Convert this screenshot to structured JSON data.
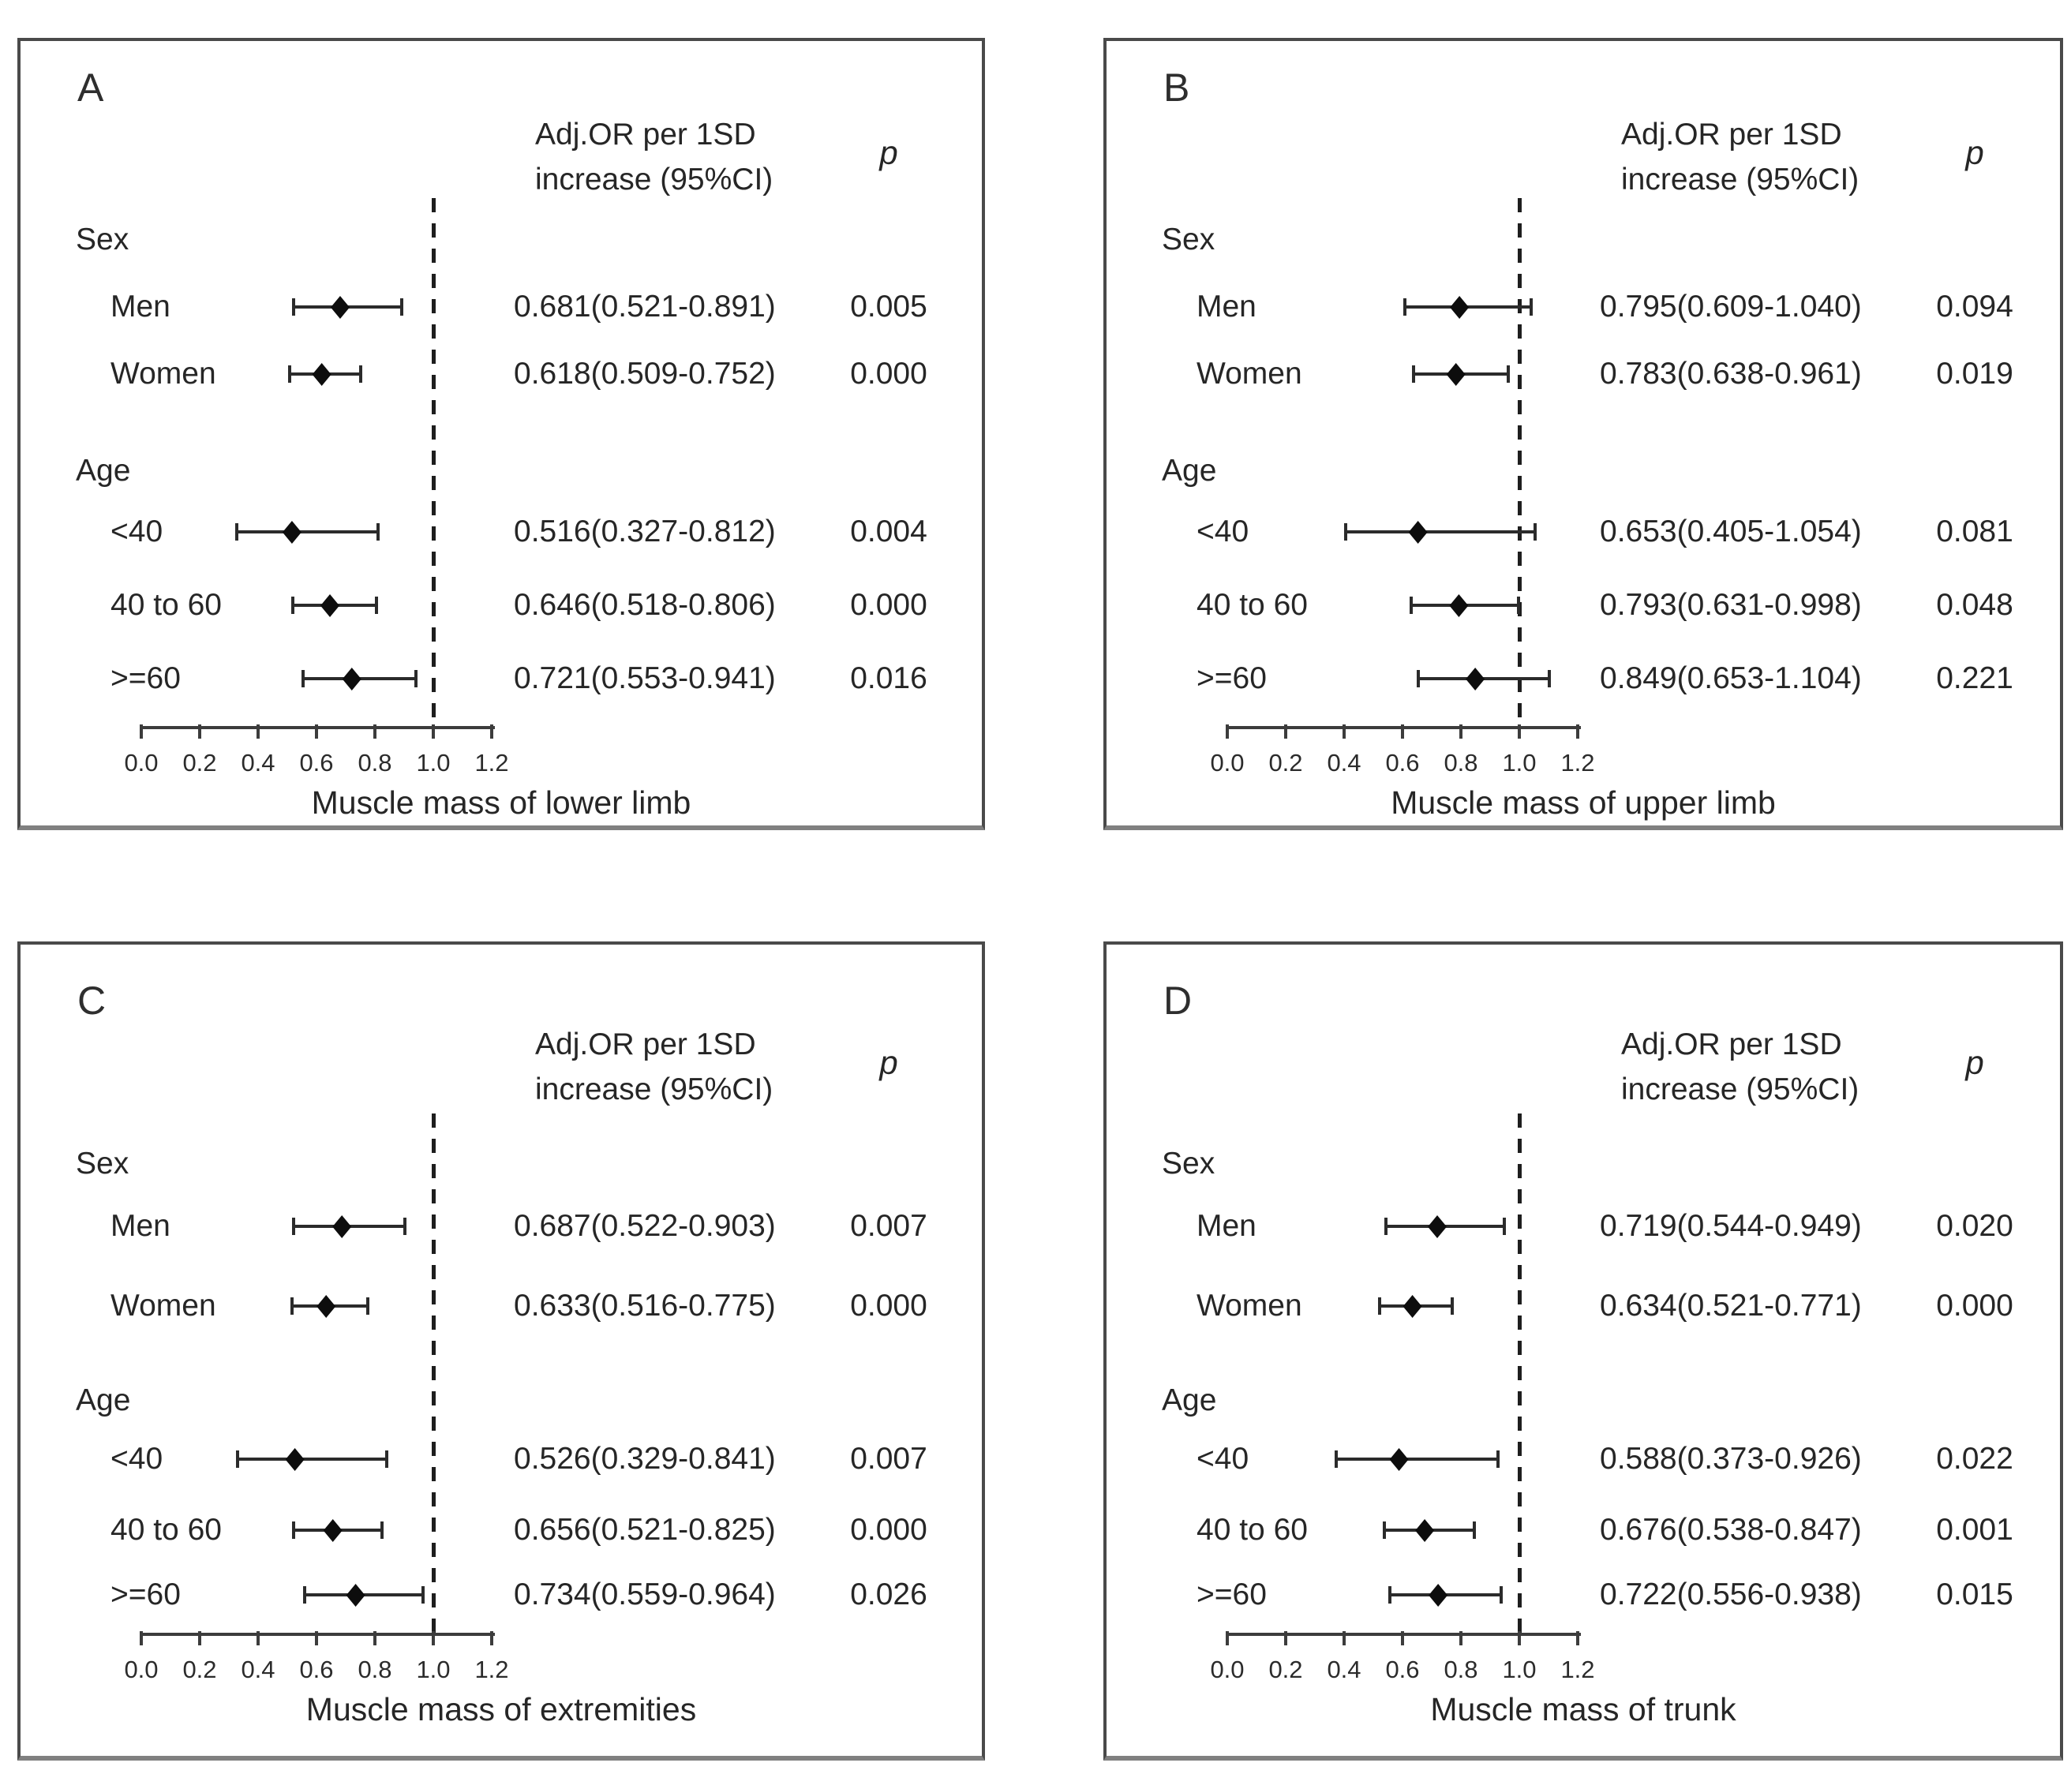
{
  "chart_data": [
    {
      "type": "scatter",
      "subtype": "forest-plot",
      "panel_letter": "A",
      "col_header": [
        "Adj.OR per 1SD",
        "increase (95%CI)"
      ],
      "p_header": "p",
      "xlabel": "Muscle mass of lower limb",
      "xlim": [
        0.0,
        1.2
      ],
      "x_ticks": [
        "0.0",
        "0.2",
        "0.4",
        "0.6",
        "0.8",
        "1.0",
        "1.2"
      ],
      "reference_line_x": 1.0,
      "marker": "diamond",
      "error_bars": true,
      "groups": [
        {
          "name": "Sex",
          "rows": [
            {
              "label": "Men",
              "or": 0.681,
              "ci_low": 0.521,
              "ci_high": 0.891,
              "or_text": "0.681(0.521-0.891)",
              "p_text": "0.005"
            },
            {
              "label": "Women",
              "or": 0.618,
              "ci_low": 0.509,
              "ci_high": 0.752,
              "or_text": "0.618(0.509-0.752)",
              "p_text": "0.000"
            }
          ]
        },
        {
          "name": "Age",
          "rows": [
            {
              "label": "<40",
              "or": 0.516,
              "ci_low": 0.327,
              "ci_high": 0.812,
              "or_text": "0.516(0.327-0.812)",
              "p_text": "0.004"
            },
            {
              "label": "40 to 60",
              "or": 0.646,
              "ci_low": 0.518,
              "ci_high": 0.806,
              "or_text": "0.646(0.518-0.806)",
              "p_text": "0.000"
            },
            {
              "label": ">=60",
              "or": 0.721,
              "ci_low": 0.553,
              "ci_high": 0.941,
              "or_text": "0.721(0.553-0.941)",
              "p_text": "0.016"
            }
          ]
        }
      ]
    },
    {
      "type": "scatter",
      "subtype": "forest-plot",
      "panel_letter": "B",
      "col_header": [
        "Adj.OR per 1SD",
        "increase (95%CI)"
      ],
      "p_header": "p",
      "xlabel": "Muscle mass of upper limb",
      "xlim": [
        0.0,
        1.2
      ],
      "x_ticks": [
        "0.0",
        "0.2",
        "0.4",
        "0.6",
        "0.8",
        "1.0",
        "1.2"
      ],
      "reference_line_x": 1.0,
      "marker": "diamond",
      "error_bars": true,
      "groups": [
        {
          "name": "Sex",
          "rows": [
            {
              "label": "Men",
              "or": 0.795,
              "ci_low": 0.609,
              "ci_high": 1.04,
              "or_text": "0.795(0.609-1.040)",
              "p_text": "0.094"
            },
            {
              "label": "Women",
              "or": 0.783,
              "ci_low": 0.638,
              "ci_high": 0.961,
              "or_text": "0.783(0.638-0.961)",
              "p_text": "0.019"
            }
          ]
        },
        {
          "name": "Age",
          "rows": [
            {
              "label": "<40",
              "or": 0.653,
              "ci_low": 0.405,
              "ci_high": 1.054,
              "or_text": "0.653(0.405-1.054)",
              "p_text": "0.081"
            },
            {
              "label": "40 to 60",
              "or": 0.793,
              "ci_low": 0.631,
              "ci_high": 0.998,
              "or_text": "0.793(0.631-0.998)",
              "p_text": "0.048"
            },
            {
              "label": ">=60",
              "or": 0.849,
              "ci_low": 0.653,
              "ci_high": 1.104,
              "or_text": "0.849(0.653-1.104)",
              "p_text": "0.221"
            }
          ]
        }
      ]
    },
    {
      "type": "scatter",
      "subtype": "forest-plot",
      "panel_letter": "C",
      "col_header": [
        "Adj.OR per 1SD",
        "increase (95%CI)"
      ],
      "p_header": "p",
      "xlabel": "Muscle mass of extremities",
      "xlim": [
        0.0,
        1.2
      ],
      "x_ticks": [
        "0.0",
        "0.2",
        "0.4",
        "0.6",
        "0.8",
        "1.0",
        "1.2"
      ],
      "reference_line_x": 1.0,
      "marker": "diamond",
      "error_bars": true,
      "groups": [
        {
          "name": "Sex",
          "rows": [
            {
              "label": "Men",
              "or": 0.687,
              "ci_low": 0.522,
              "ci_high": 0.903,
              "or_text": "0.687(0.522-0.903)",
              "p_text": "0.007"
            },
            {
              "label": "Women",
              "or": 0.633,
              "ci_low": 0.516,
              "ci_high": 0.775,
              "or_text": "0.633(0.516-0.775)",
              "p_text": "0.000"
            }
          ]
        },
        {
          "name": "Age",
          "rows": [
            {
              "label": "<40",
              "or": 0.526,
              "ci_low": 0.329,
              "ci_high": 0.841,
              "or_text": "0.526(0.329-0.841)",
              "p_text": "0.007"
            },
            {
              "label": "40 to 60",
              "or": 0.656,
              "ci_low": 0.521,
              "ci_high": 0.825,
              "or_text": "0.656(0.521-0.825)",
              "p_text": "0.000"
            },
            {
              "label": ">=60",
              "or": 0.734,
              "ci_low": 0.559,
              "ci_high": 0.964,
              "or_text": "0.734(0.559-0.964)",
              "p_text": "0.026"
            }
          ]
        }
      ]
    },
    {
      "type": "scatter",
      "subtype": "forest-plot",
      "panel_letter": "D",
      "col_header": [
        "Adj.OR per 1SD",
        "increase (95%CI)"
      ],
      "p_header": "p",
      "xlabel": "Muscle mass of trunk",
      "xlim": [
        0.0,
        1.2
      ],
      "x_ticks": [
        "0.0",
        "0.2",
        "0.4",
        "0.6",
        "0.8",
        "1.0",
        "1.2"
      ],
      "reference_line_x": 1.0,
      "marker": "diamond",
      "error_bars": true,
      "groups": [
        {
          "name": "Sex",
          "rows": [
            {
              "label": "Men",
              "or": 0.719,
              "ci_low": 0.544,
              "ci_high": 0.949,
              "or_text": "0.719(0.544-0.949)",
              "p_text": "0.020"
            },
            {
              "label": "Women",
              "or": 0.634,
              "ci_low": 0.521,
              "ci_high": 0.771,
              "or_text": "0.634(0.521-0.771)",
              "p_text": "0.000"
            }
          ]
        },
        {
          "name": "Age",
          "rows": [
            {
              "label": "<40",
              "or": 0.588,
              "ci_low": 0.373,
              "ci_high": 0.926,
              "or_text": "0.588(0.373-0.926)",
              "p_text": "0.022"
            },
            {
              "label": "40 to 60",
              "or": 0.676,
              "ci_low": 0.538,
              "ci_high": 0.847,
              "or_text": "0.676(0.538-0.847)",
              "p_text": "0.001"
            },
            {
              "label": ">=60",
              "or": 0.722,
              "ci_low": 0.556,
              "ci_high": 0.938,
              "or_text": "0.722(0.556-0.938)",
              "p_text": "0.015"
            }
          ]
        }
      ]
    }
  ]
}
